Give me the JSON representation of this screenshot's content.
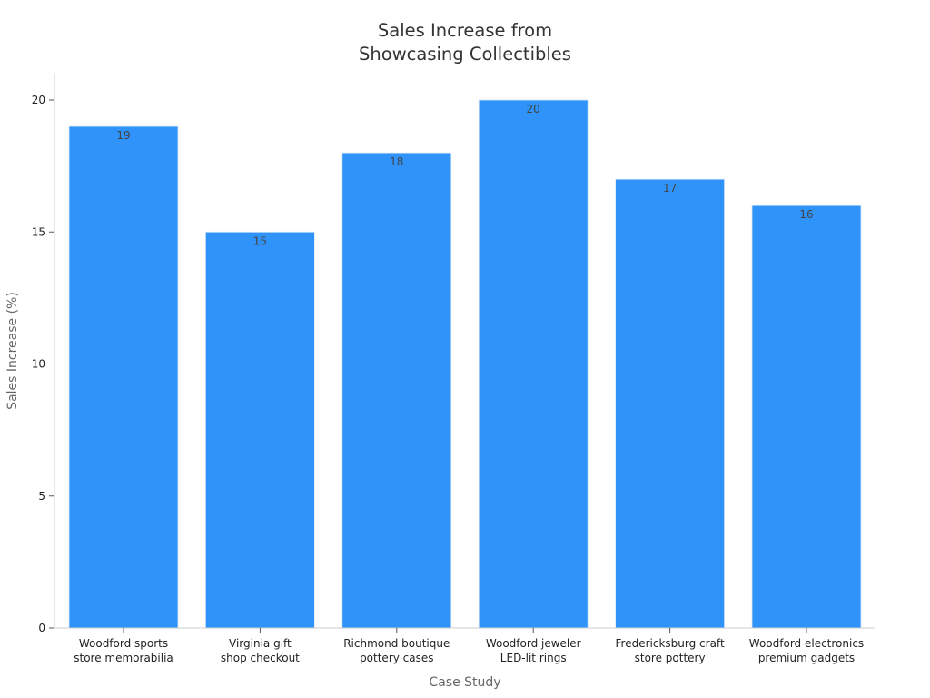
{
  "chart_data": {
    "type": "bar",
    "title": "Sales Increase from Showcasing Collectibles",
    "title_lines": [
      "Sales Increase from",
      "Showcasing Collectibles"
    ],
    "xlabel": "Case Study",
    "ylabel": "Sales Increase (%)",
    "categories": [
      [
        "Woodford sports",
        "store memorabilia"
      ],
      [
        "Virginia gift",
        "shop checkout"
      ],
      [
        "Richmond boutique",
        "pottery cases"
      ],
      [
        "Woodford jeweler",
        "LED-lit rings"
      ],
      [
        "Fredericksburg craft",
        "store pottery"
      ],
      [
        "Woodford electronics",
        "premium gadgets"
      ]
    ],
    "values": [
      19,
      15,
      18,
      20,
      17,
      16
    ],
    "ylim": [
      0,
      20
    ],
    "yticks": [
      0,
      5,
      10,
      15,
      20
    ],
    "bar_color": "#2f93f9",
    "grid": false,
    "legend": "none"
  }
}
